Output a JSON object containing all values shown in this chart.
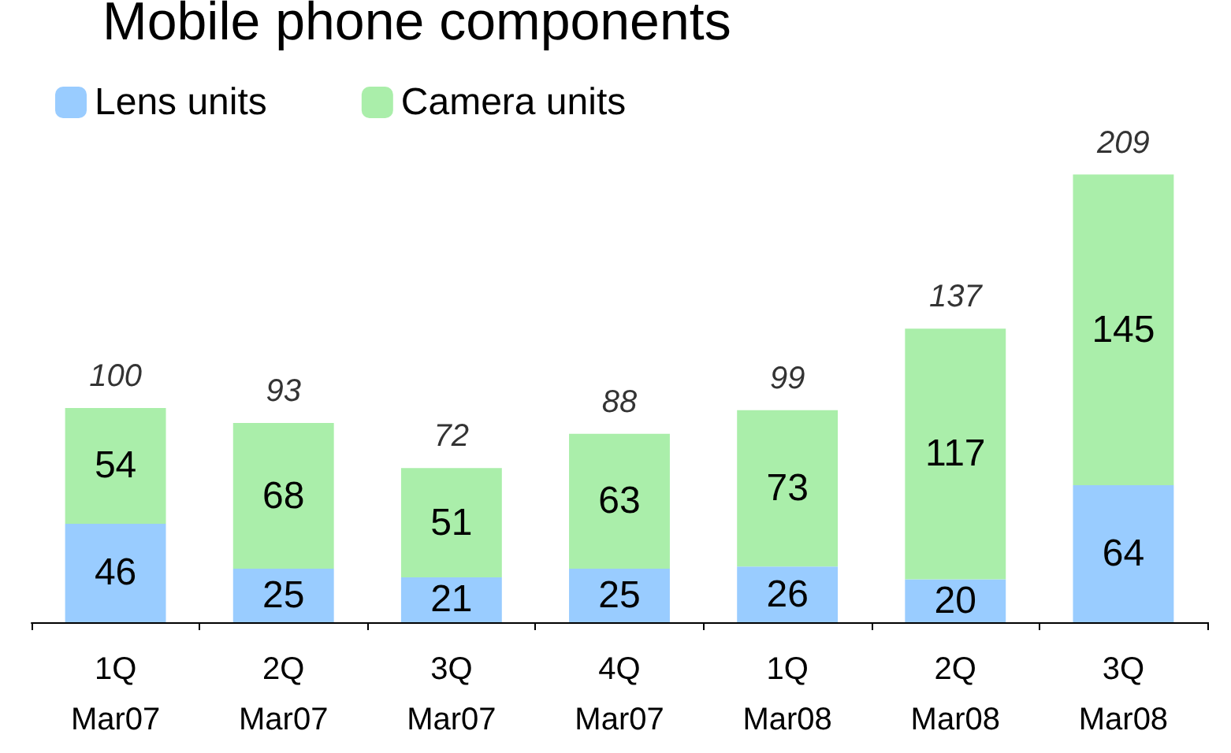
{
  "chart_data": {
    "type": "bar",
    "title": "Mobile phone components",
    "categories": [
      "1Q\nMar07",
      "2Q\nMar07",
      "3Q\nMar07",
      "4Q\nMar07",
      "1Q\nMar08",
      "2Q\nMar08",
      "3Q\nMar08"
    ],
    "series": [
      {
        "name": "Lens units",
        "color": "#99ccff",
        "values": [
          46,
          25,
          21,
          25,
          26,
          20,
          64
        ]
      },
      {
        "name": "Camera units",
        "color": "#aaeeaa",
        "values": [
          54,
          68,
          51,
          63,
          73,
          117,
          145
        ]
      }
    ],
    "stacked": true,
    "data_labels": true,
    "totals": [
      "100",
      "93",
      "72",
      "88",
      "99",
      "137",
      "209"
    ],
    "legend": "top left",
    "grid": false
  }
}
